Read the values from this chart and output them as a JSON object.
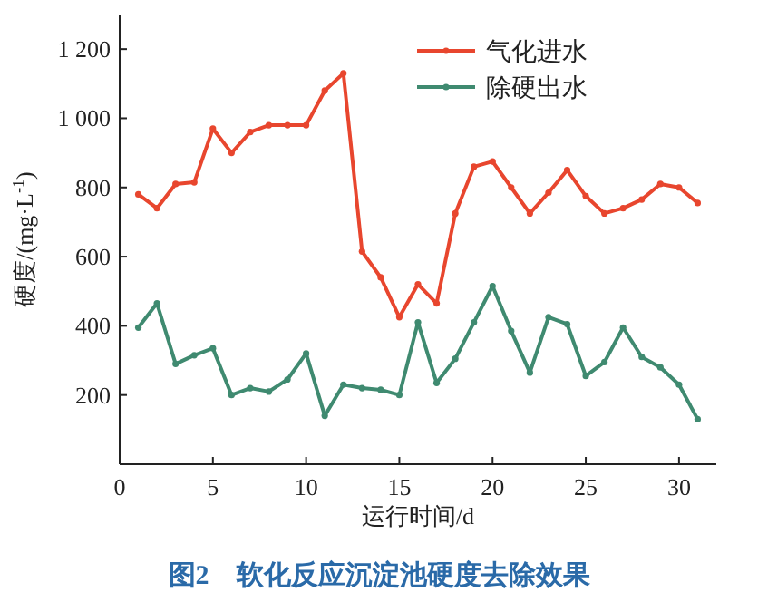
{
  "chart_data": {
    "type": "line",
    "title": "图2　软化反应沉淀池硬度去除效果",
    "xlabel": "运行时间/d",
    "ylabel": "硬度/(mg·L$^{-1}$)",
    "x": [
      1,
      2,
      3,
      4,
      5,
      6,
      7,
      8,
      9,
      10,
      11,
      12,
      13,
      14,
      15,
      16,
      17,
      18,
      19,
      20,
      21,
      22,
      23,
      24,
      25,
      26,
      27,
      28,
      29,
      30,
      31
    ],
    "series": [
      {
        "name": "气化进水",
        "color": "#e8462e",
        "values": [
          780,
          740,
          810,
          815,
          970,
          900,
          960,
          980,
          980,
          980,
          1080,
          1130,
          615,
          540,
          425,
          520,
          465,
          725,
          860,
          875,
          800,
          725,
          785,
          850,
          775,
          725,
          740,
          765,
          810,
          800,
          755
        ]
      },
      {
        "name": "除硬出水",
        "color": "#3f8a70",
        "values": [
          395,
          465,
          290,
          315,
          335,
          200,
          220,
          210,
          245,
          320,
          140,
          230,
          220,
          215,
          200,
          410,
          235,
          305,
          410,
          515,
          385,
          265,
          425,
          405,
          255,
          295,
          395,
          310,
          280,
          230,
          130
        ]
      }
    ],
    "xlim": [
      0,
      32
    ],
    "ylim": [
      0,
      1300
    ],
    "xticks": [
      0,
      5,
      10,
      15,
      20,
      25,
      30
    ],
    "yticks": [
      {
        "value": 200,
        "label": "200"
      },
      {
        "value": 400,
        "label": "400"
      },
      {
        "value": 600,
        "label": "600"
      },
      {
        "value": 800,
        "label": "800"
      },
      {
        "value": 1000,
        "label": "1 000"
      },
      {
        "value": 1200,
        "label": "1 200"
      }
    ],
    "grid": false,
    "legend": "top right",
    "marker": "circle",
    "line_style": "solid"
  }
}
